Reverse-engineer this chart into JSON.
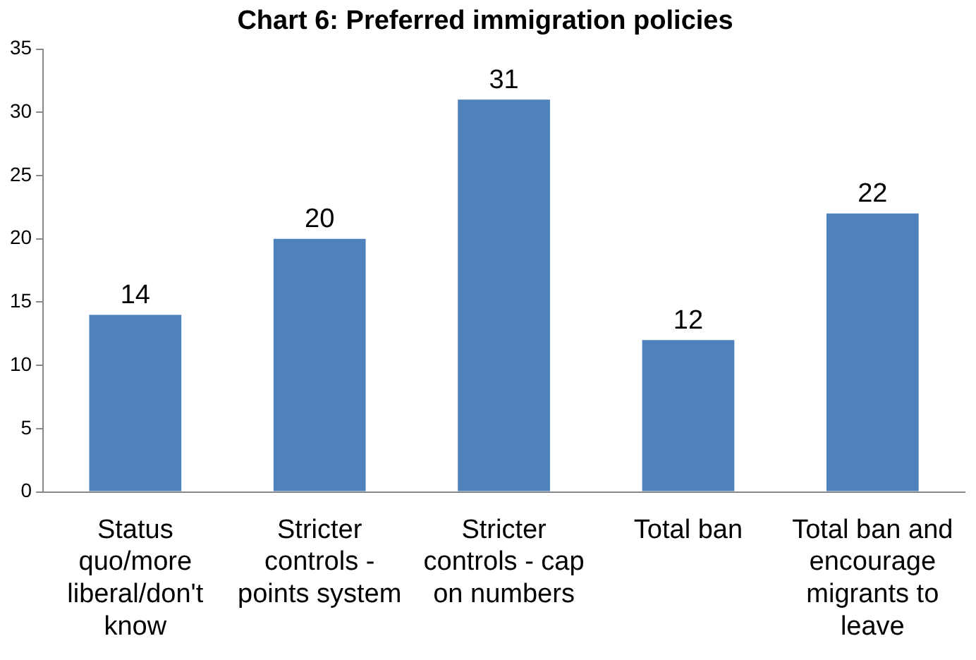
{
  "chart_data": {
    "type": "bar",
    "title": "Chart 6: Preferred immigration policies",
    "categories": [
      "Status quo/more liberal/don't know",
      "Stricter controls - points system",
      "Stricter controls - cap on numbers",
      "Total ban",
      "Total ban and encourage migrants to leave"
    ],
    "values": [
      14,
      20,
      31,
      12,
      22
    ],
    "color": "#4f81bd",
    "ylim": [
      0,
      35
    ],
    "yticks": [
      0,
      5,
      10,
      15,
      20,
      25,
      30,
      35
    ],
    "grid": false,
    "legend": false,
    "data_labels": true
  }
}
